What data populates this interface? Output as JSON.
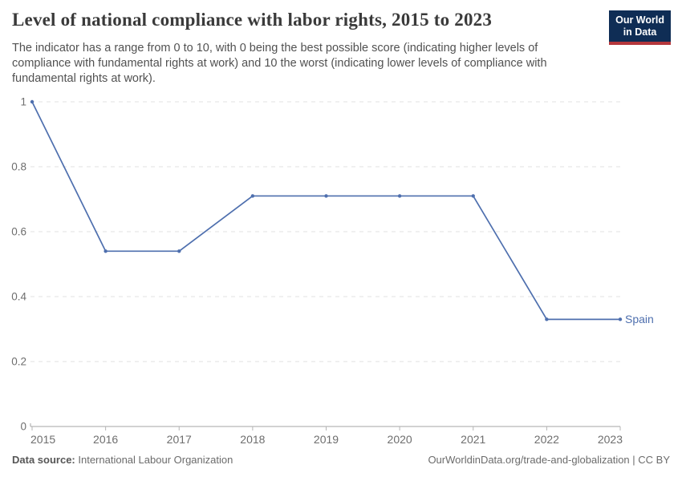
{
  "header": {
    "title": "Level of national compliance with labor rights, 2015 to 2023",
    "subtitle": "The indicator has a range from 0 to 10, with 0 being the best possible score (indicating higher levels of compliance with fundamental rights at work) and 10 the worst (indicating lower levels of compliance with fundamental rights at work).",
    "logo": {
      "line1": "Our World",
      "line2": "in Data",
      "bg_color": "#0f2d55",
      "accent_color": "#b4373c"
    }
  },
  "chart_data": {
    "type": "line",
    "title": "Level of national compliance with labor rights, 2015 to 2023",
    "x": [
      2015,
      2016,
      2017,
      2018,
      2019,
      2020,
      2021,
      2022,
      2023
    ],
    "series": [
      {
        "name": "Spain",
        "color": "#4e6fae",
        "values": [
          1,
          0.54,
          0.54,
          0.71,
          0.71,
          0.71,
          0.71,
          0.33,
          0.33
        ]
      }
    ],
    "ylim": [
      0,
      1
    ],
    "y_ticks": [
      0,
      0.2,
      0.4,
      0.6,
      0.8,
      1
    ],
    "y_tick_labels": [
      "0",
      "0.2",
      "0.4",
      "0.6",
      "0.8",
      "1"
    ],
    "xlabel": "",
    "ylabel": "",
    "grid": "horizontal-dashed",
    "legend": "end-of-line-label"
  },
  "footer": {
    "data_source_label": "Data source:",
    "data_source_value": "International Labour Organization",
    "right_text": "OurWorldinData.org/trade-and-globalization | CC BY"
  }
}
